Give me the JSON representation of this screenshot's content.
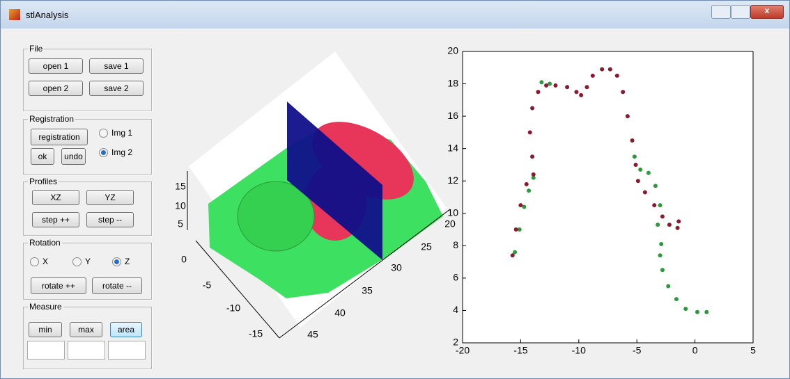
{
  "window": {
    "title": "stlAnalysis"
  },
  "panels": [
    {
      "title": "File",
      "buttons": [
        "open 1",
        "save 1",
        "open 2",
        "save 2"
      ]
    },
    {
      "title": "Registration",
      "buttons": [
        "registration",
        "ok",
        "undo"
      ],
      "radios": [
        "Img 1",
        "Img 2"
      ],
      "selected": "Img 2"
    },
    {
      "title": "Profiles",
      "buttons": [
        "XZ",
        "YZ",
        "step ++",
        "step --"
      ]
    },
    {
      "title": "Rotation",
      "radios": [
        "X",
        "Y",
        "Z"
      ],
      "selected": "Z",
      "buttons": [
        "rotate ++",
        "rotate --"
      ]
    },
    {
      "title": "Measure",
      "buttons": [
        "min",
        "max",
        "area"
      ]
    }
  ],
  "view3d": {
    "zticks": [
      15,
      10,
      5
    ],
    "yticks": [
      0,
      -5,
      -10,
      -15
    ],
    "xticks": [
      20,
      25,
      30,
      35,
      40,
      45
    ]
  },
  "chart_data": {
    "type": "scatter",
    "xlim": [
      -20,
      5
    ],
    "ylim": [
      2,
      20
    ],
    "xticks": [
      -20,
      -15,
      -10,
      -5,
      0,
      5
    ],
    "yticks": [
      2,
      4,
      6,
      8,
      10,
      12,
      14,
      16,
      18,
      20
    ],
    "series": [
      {
        "color": "#2a9a3c",
        "x": [
          -15.5,
          -15.1,
          -14.7,
          -14.3,
          -13.9,
          -13.2,
          -12.5,
          -5.2,
          -4.7,
          -4.0,
          -3.4,
          -3.0,
          -3.2,
          -2.9,
          -3.0,
          -2.8,
          -2.3,
          -1.6,
          -0.8,
          0.2,
          1.0
        ],
        "values": [
          7.6,
          9.0,
          10.4,
          11.4,
          12.2,
          18.1,
          18.0,
          13.5,
          12.7,
          12.5,
          11.7,
          10.5,
          9.3,
          8.1,
          7.4,
          6.5,
          5.5,
          4.7,
          4.1,
          3.9,
          3.9
        ]
      },
      {
        "color": "#8b1a2e",
        "x": [
          -15.7,
          -15.4,
          -15.0,
          -14.5,
          -13.9,
          -14.0,
          -14.2,
          -14.0,
          -13.5,
          -12.8,
          -12.0,
          -11.0,
          -10.2,
          -9.8,
          -9.3,
          -8.8,
          -8.0,
          -7.3,
          -6.7,
          -6.2,
          -5.8,
          -5.4,
          -5.1,
          -4.9,
          -4.3,
          -3.5,
          -2.8,
          -2.2,
          -1.5,
          -1.4
        ],
        "values": [
          7.4,
          9.0,
          10.5,
          11.8,
          12.4,
          13.5,
          15.0,
          16.5,
          17.5,
          17.9,
          17.9,
          17.8,
          17.5,
          17.3,
          17.8,
          18.5,
          18.9,
          18.9,
          18.5,
          17.5,
          16.0,
          14.5,
          13.0,
          12.0,
          11.3,
          10.5,
          9.8,
          9.3,
          9.1,
          9.5
        ]
      }
    ]
  }
}
